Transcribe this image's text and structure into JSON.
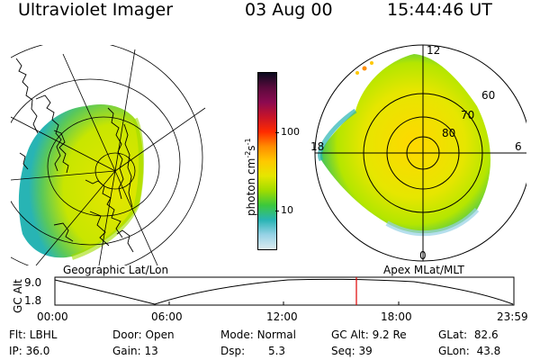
{
  "header": {
    "instrument": "Ultraviolet Imager",
    "date": "03 Aug 00",
    "time": "15:44:46 UT"
  },
  "left_panel": {
    "caption": "Geographic Lat/Lon"
  },
  "right_panel": {
    "caption": "Apex MLat/MLT",
    "mlt_labels": {
      "top": "12",
      "left": "18",
      "right": "6",
      "bottom": "0"
    },
    "lat_labels": [
      "60",
      "70",
      "80"
    ]
  },
  "colorbar": {
    "unit_label": "photon cm",
    "unit_sup1": "-2",
    "unit_s": "s",
    "unit_sup2": "-1",
    "ticks": [
      "100",
      "10"
    ],
    "colors": [
      "#0a0a1e",
      "#5a0a3c",
      "#8c0a50",
      "#c81428",
      "#ff2a00",
      "#ff8c00",
      "#ffc800",
      "#e6e600",
      "#a0dc00",
      "#3cc83c",
      "#28b4b4",
      "#96d2e6",
      "#dcebf0"
    ]
  },
  "timeline": {
    "ylabel": "GC Alt",
    "ytick_top": "9.0",
    "ytick_bottom": "1.8",
    "xticks": [
      "00:00",
      "06:00",
      "12:00",
      "18:00",
      "23:59"
    ],
    "marker_color": "#e00000"
  },
  "info": {
    "flt": "Flt: LBHL",
    "ip": "IP: 36.0",
    "door": "Door: Open",
    "gain": "Gain: 13",
    "mode_label": "Mode:",
    "mode_value": "Normal",
    "dsp_label": "Dsp:",
    "dsp_value": "5.3",
    "gcalt": "GC Alt: 9.2 Re",
    "seq": "Seq: 39",
    "glat_label": "GLat:",
    "glat_value": "82.6",
    "glon_label": "GLon:",
    "glon_value": "43.8"
  }
}
